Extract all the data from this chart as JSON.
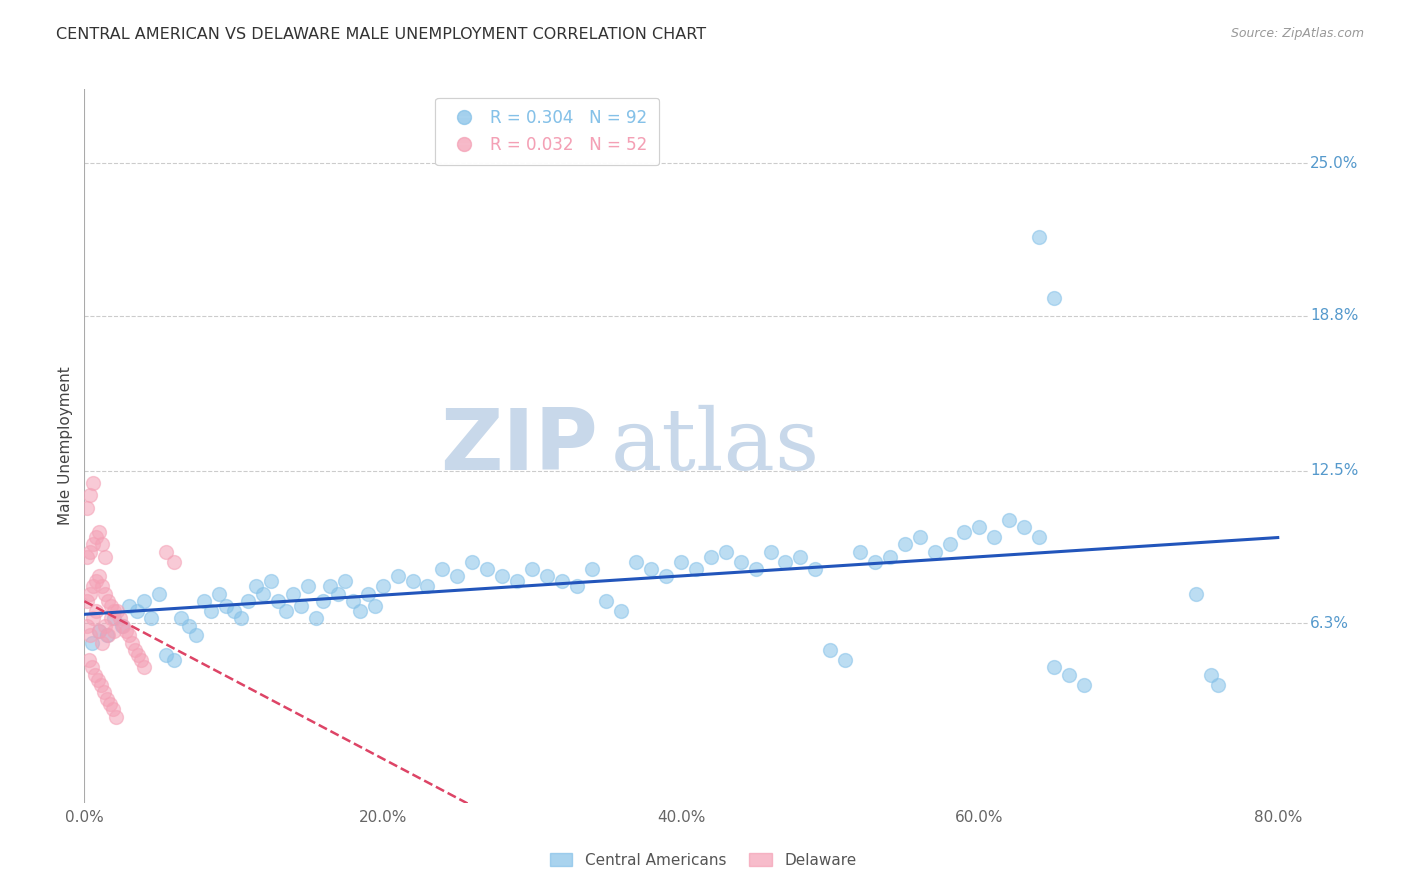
{
  "title": "CENTRAL AMERICAN VS DELAWARE MALE UNEMPLOYMENT CORRELATION CHART",
  "source": "Source: ZipAtlas.com",
  "ylabel": "Male Unemployment",
  "xlabel_ticks": [
    "0.0%",
    "20.0%",
    "40.0%",
    "60.0%",
    "80.0%"
  ],
  "xlabel_values": [
    0.0,
    0.2,
    0.4,
    0.6,
    0.8
  ],
  "ytick_labels": [
    "6.3%",
    "12.5%",
    "18.8%",
    "25.0%"
  ],
  "ytick_values": [
    0.063,
    0.125,
    0.188,
    0.25
  ],
  "xlim": [
    0.0,
    0.82
  ],
  "ylim": [
    -0.01,
    0.28
  ],
  "blue_R": 0.304,
  "blue_N": 92,
  "pink_R": 0.032,
  "pink_N": 52,
  "blue_color": "#85c1e8",
  "pink_color": "#f4a0b5",
  "trend_blue_color": "#2255bb",
  "trend_pink_color": "#dd4466",
  "watermark_zip": "ZIP",
  "watermark_atlas": "atlas",
  "watermark_color": "#c8d8ea",
  "legend_label_blue": "Central Americans",
  "legend_label_pink": "Delaware",
  "blue_scatter_x": [
    0.005,
    0.01,
    0.015,
    0.02,
    0.025,
    0.03,
    0.035,
    0.04,
    0.045,
    0.05,
    0.055,
    0.06,
    0.065,
    0.07,
    0.075,
    0.08,
    0.085,
    0.09,
    0.095,
    0.1,
    0.105,
    0.11,
    0.115,
    0.12,
    0.125,
    0.13,
    0.135,
    0.14,
    0.145,
    0.15,
    0.155,
    0.16,
    0.165,
    0.17,
    0.175,
    0.18,
    0.185,
    0.19,
    0.195,
    0.2,
    0.21,
    0.22,
    0.23,
    0.24,
    0.25,
    0.26,
    0.27,
    0.28,
    0.29,
    0.3,
    0.31,
    0.32,
    0.33,
    0.34,
    0.35,
    0.36,
    0.37,
    0.38,
    0.39,
    0.4,
    0.41,
    0.42,
    0.43,
    0.44,
    0.45,
    0.46,
    0.47,
    0.48,
    0.49,
    0.5,
    0.51,
    0.52,
    0.53,
    0.54,
    0.55,
    0.56,
    0.57,
    0.58,
    0.59,
    0.6,
    0.61,
    0.62,
    0.63,
    0.64,
    0.65,
    0.66,
    0.67,
    0.745,
    0.755,
    0.76,
    0.64,
    0.65
  ],
  "blue_scatter_y": [
    0.055,
    0.06,
    0.058,
    0.065,
    0.062,
    0.07,
    0.068,
    0.072,
    0.065,
    0.075,
    0.05,
    0.048,
    0.065,
    0.062,
    0.058,
    0.072,
    0.068,
    0.075,
    0.07,
    0.068,
    0.065,
    0.072,
    0.078,
    0.075,
    0.08,
    0.072,
    0.068,
    0.075,
    0.07,
    0.078,
    0.065,
    0.072,
    0.078,
    0.075,
    0.08,
    0.072,
    0.068,
    0.075,
    0.07,
    0.078,
    0.082,
    0.08,
    0.078,
    0.085,
    0.082,
    0.088,
    0.085,
    0.082,
    0.08,
    0.085,
    0.082,
    0.08,
    0.078,
    0.085,
    0.072,
    0.068,
    0.088,
    0.085,
    0.082,
    0.088,
    0.085,
    0.09,
    0.092,
    0.088,
    0.085,
    0.092,
    0.088,
    0.09,
    0.085,
    0.052,
    0.048,
    0.092,
    0.088,
    0.09,
    0.095,
    0.098,
    0.092,
    0.095,
    0.1,
    0.102,
    0.098,
    0.105,
    0.102,
    0.098,
    0.045,
    0.042,
    0.038,
    0.075,
    0.042,
    0.038,
    0.22,
    0.195
  ],
  "pink_scatter_x": [
    0.002,
    0.004,
    0.006,
    0.008,
    0.01,
    0.012,
    0.014,
    0.016,
    0.018,
    0.02,
    0.002,
    0.004,
    0.006,
    0.008,
    0.01,
    0.012,
    0.014,
    0.016,
    0.018,
    0.02,
    0.003,
    0.005,
    0.007,
    0.009,
    0.011,
    0.013,
    0.015,
    0.017,
    0.019,
    0.021,
    0.002,
    0.004,
    0.006,
    0.008,
    0.01,
    0.012,
    0.014,
    0.002,
    0.004,
    0.006,
    0.022,
    0.024,
    0.026,
    0.028,
    0.03,
    0.032,
    0.034,
    0.036,
    0.038,
    0.04,
    0.055,
    0.06
  ],
  "pink_scatter_y": [
    0.062,
    0.058,
    0.065,
    0.068,
    0.06,
    0.055,
    0.062,
    0.058,
    0.065,
    0.06,
    0.072,
    0.075,
    0.078,
    0.08,
    0.082,
    0.078,
    0.075,
    0.072,
    0.07,
    0.068,
    0.048,
    0.045,
    0.042,
    0.04,
    0.038,
    0.035,
    0.032,
    0.03,
    0.028,
    0.025,
    0.09,
    0.092,
    0.095,
    0.098,
    0.1,
    0.095,
    0.09,
    0.11,
    0.115,
    0.12,
    0.068,
    0.065,
    0.062,
    0.06,
    0.058,
    0.055,
    0.052,
    0.05,
    0.048,
    0.045,
    0.092,
    0.088
  ]
}
